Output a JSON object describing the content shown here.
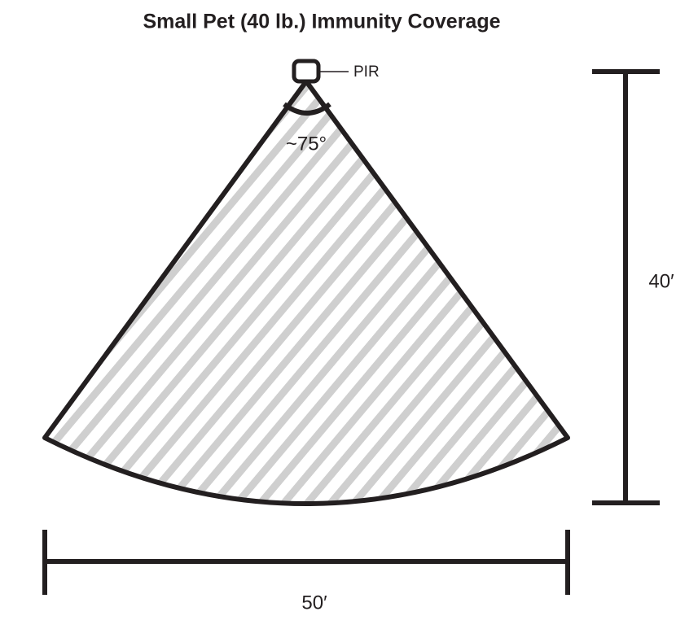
{
  "title": "Small Pet (40 lb.) Immunity Coverage",
  "sensor_label": "PIR",
  "angle_label": "~75°",
  "depth_label": "40′",
  "width_label": "50′"
}
